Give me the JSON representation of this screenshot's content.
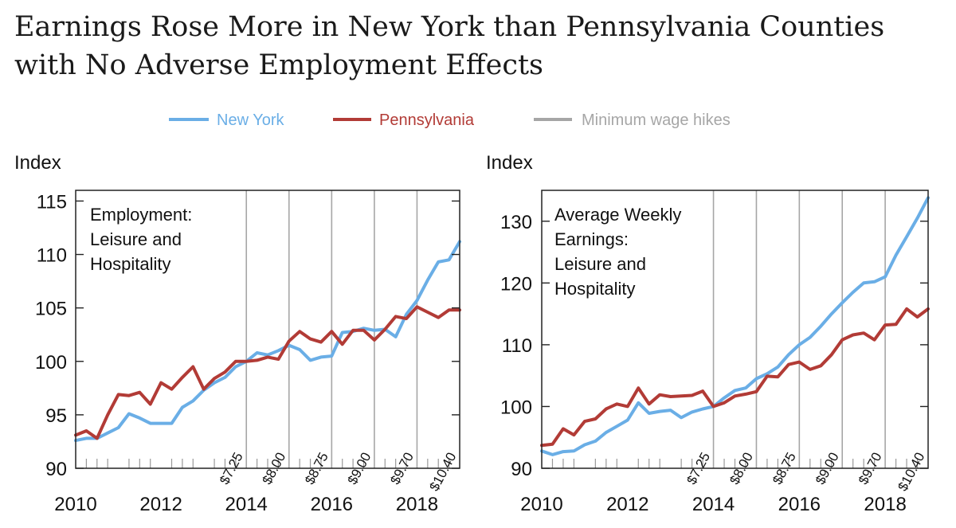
{
  "title": "Earnings Rose More in New York than Pennsylvania Counties with No Adverse Employment Effects",
  "legend": [
    {
      "label": "New York",
      "color": "#6aaee6"
    },
    {
      "label": "Pennsylvania",
      "color": "#b23b36"
    },
    {
      "label": "Minimum wage hikes",
      "color": "#a6a6a6"
    }
  ],
  "chart_data": [
    {
      "type": "line",
      "title": "Employment: Leisure and Hospitality",
      "title_lines": [
        "Employment:",
        "Leisure and",
        "Hospitality"
      ],
      "ylabel": "Index",
      "xlim": [
        2010,
        2019
      ],
      "ylim": [
        90,
        116
      ],
      "yticks": [
        90,
        95,
        100,
        105,
        110,
        115
      ],
      "xticks": [
        2010,
        2012,
        2014,
        2016,
        2018
      ],
      "wage_hikes": [
        {
          "x": 2014.0,
          "label": "$7.25"
        },
        {
          "x": 2015.0,
          "label": "$8.00"
        },
        {
          "x": 2016.0,
          "label": "$8.75"
        },
        {
          "x": 2017.0,
          "label": "$9.00"
        },
        {
          "x": 2018.0,
          "label": "$9.70"
        },
        {
          "x": 2019.0,
          "label": "$10.40"
        }
      ],
      "series": [
        {
          "name": "New York",
          "color": "#6aaee6",
          "x": [
            2010.0,
            2010.25,
            2010.5,
            2010.75,
            2011.0,
            2011.25,
            2011.5,
            2011.75,
            2012.0,
            2012.25,
            2012.5,
            2012.75,
            2013.0,
            2013.25,
            2013.5,
            2013.75,
            2014.0,
            2014.25,
            2014.5,
            2014.75,
            2015.0,
            2015.25,
            2015.5,
            2015.75,
            2016.0,
            2016.25,
            2016.5,
            2016.75,
            2017.0,
            2017.25,
            2017.5,
            2017.75,
            2018.0,
            2018.25,
            2018.5,
            2018.75,
            2019.0
          ],
          "values": [
            92.6,
            92.8,
            92.8,
            93.3,
            93.8,
            95.1,
            94.7,
            94.2,
            94.2,
            94.2,
            95.7,
            96.3,
            97.3,
            98.0,
            98.5,
            99.5,
            100.0,
            100.8,
            100.6,
            101.0,
            101.5,
            101.1,
            100.1,
            100.4,
            100.5,
            102.7,
            102.8,
            103.1,
            102.9,
            103.0,
            102.3,
            104.4,
            105.7,
            107.6,
            109.3,
            109.5,
            111.2
          ]
        },
        {
          "name": "Pennsylvania",
          "color": "#b23b36",
          "x": [
            2010.0,
            2010.25,
            2010.5,
            2010.75,
            2011.0,
            2011.25,
            2011.5,
            2011.75,
            2012.0,
            2012.25,
            2012.5,
            2012.75,
            2013.0,
            2013.25,
            2013.5,
            2013.75,
            2014.0,
            2014.25,
            2014.5,
            2014.75,
            2015.0,
            2015.25,
            2015.5,
            2015.75,
            2016.0,
            2016.25,
            2016.5,
            2016.75,
            2017.0,
            2017.25,
            2017.5,
            2017.75,
            2018.0,
            2018.25,
            2018.5,
            2018.75,
            2019.0
          ],
          "values": [
            93.1,
            93.5,
            92.8,
            95.0,
            96.9,
            96.8,
            97.1,
            96.0,
            98.0,
            97.4,
            98.5,
            99.5,
            97.4,
            98.4,
            99.0,
            100.0,
            100.0,
            100.1,
            100.4,
            100.2,
            101.9,
            102.8,
            102.1,
            101.8,
            102.8,
            101.6,
            102.9,
            102.9,
            102.0,
            103.0,
            104.2,
            104.0,
            105.1,
            104.6,
            104.1,
            104.8,
            104.8
          ]
        }
      ]
    },
    {
      "type": "line",
      "title": "Average Weekly Earnings: Leisure and Hospitality",
      "title_lines": [
        "Average Weekly",
        "Earnings:",
        "Leisure and",
        "Hospitality"
      ],
      "ylabel": "Index",
      "xlim": [
        2010,
        2019
      ],
      "ylim": [
        90,
        135
      ],
      "yticks": [
        90,
        100,
        110,
        120,
        130
      ],
      "xticks": [
        2010,
        2012,
        2014,
        2016,
        2018
      ],
      "wage_hikes": [
        {
          "x": 2014.0,
          "label": "$7.25"
        },
        {
          "x": 2015.0,
          "label": "$8.00"
        },
        {
          "x": 2016.0,
          "label": "$8.75"
        },
        {
          "x": 2017.0,
          "label": "$9.00"
        },
        {
          "x": 2018.0,
          "label": "$9.70"
        },
        {
          "x": 2019.0,
          "label": "$10.40"
        }
      ],
      "series": [
        {
          "name": "New York",
          "color": "#6aaee6",
          "x": [
            2010.0,
            2010.25,
            2010.5,
            2010.75,
            2011.0,
            2011.25,
            2011.5,
            2011.75,
            2012.0,
            2012.25,
            2012.5,
            2012.75,
            2013.0,
            2013.25,
            2013.5,
            2013.75,
            2014.0,
            2014.25,
            2014.5,
            2014.75,
            2015.0,
            2015.25,
            2015.5,
            2015.75,
            2016.0,
            2016.25,
            2016.5,
            2016.75,
            2017.0,
            2017.25,
            2017.5,
            2017.75,
            2018.0,
            2018.25,
            2018.5,
            2018.75,
            2019.0
          ],
          "values": [
            92.8,
            92.2,
            92.7,
            92.8,
            93.8,
            94.4,
            95.8,
            96.8,
            97.8,
            100.6,
            98.9,
            99.2,
            99.4,
            98.2,
            99.1,
            99.6,
            100.0,
            101.4,
            102.6,
            103.0,
            104.5,
            105.3,
            106.4,
            108.4,
            110.0,
            111.2,
            113.0,
            115.0,
            116.8,
            118.5,
            120.0,
            120.2,
            121.0,
            124.5,
            127.5,
            130.5,
            133.8
          ]
        },
        {
          "name": "Pennsylvania",
          "color": "#b23b36",
          "x": [
            2010.0,
            2010.25,
            2010.5,
            2010.75,
            2011.0,
            2011.25,
            2011.5,
            2011.75,
            2012.0,
            2012.25,
            2012.5,
            2012.75,
            2013.0,
            2013.25,
            2013.5,
            2013.75,
            2014.0,
            2014.25,
            2014.5,
            2014.75,
            2015.0,
            2015.25,
            2015.5,
            2015.75,
            2016.0,
            2016.25,
            2016.5,
            2016.75,
            2017.0,
            2017.25,
            2017.5,
            2017.75,
            2018.0,
            2018.25,
            2018.5,
            2018.75,
            2019.0
          ],
          "values": [
            93.7,
            93.9,
            96.4,
            95.4,
            97.6,
            98.0,
            99.6,
            100.4,
            100.0,
            103.0,
            100.4,
            101.9,
            101.6,
            101.7,
            101.8,
            102.5,
            100.0,
            100.6,
            101.7,
            102.0,
            102.4,
            104.9,
            104.8,
            106.8,
            107.2,
            106.0,
            106.6,
            108.4,
            110.8,
            111.6,
            111.9,
            110.8,
            113.2,
            113.3,
            115.8,
            114.5,
            115.8
          ]
        }
      ]
    }
  ]
}
